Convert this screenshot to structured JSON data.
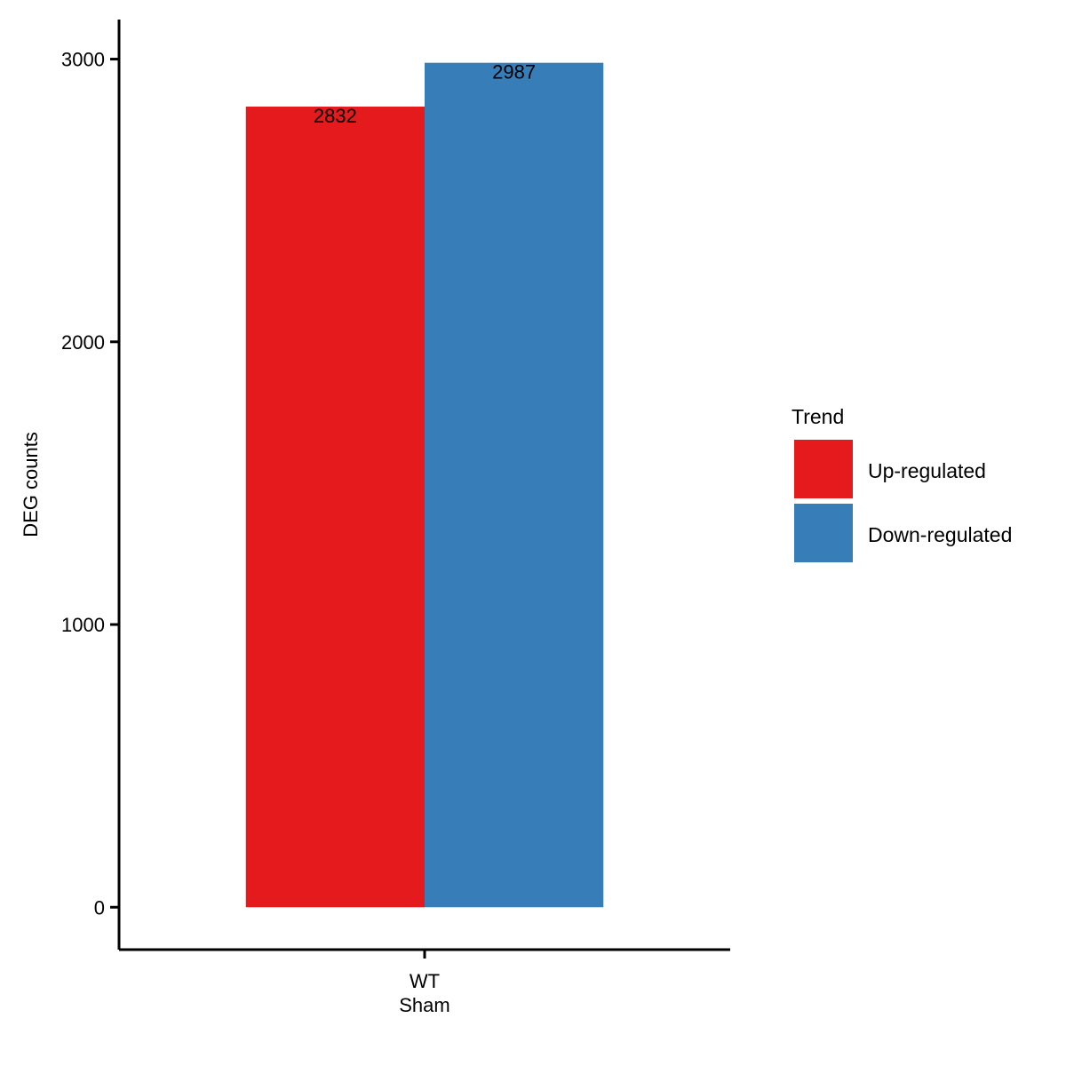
{
  "chart_data": {
    "type": "bar",
    "categories": [
      [
        "WT",
        "Sham"
      ]
    ],
    "series": [
      {
        "name": "Up-regulated",
        "values": [
          2832
        ],
        "color": "#E41A1C"
      },
      {
        "name": "Down-regulated",
        "values": [
          2987
        ],
        "color": "#377EB8"
      }
    ],
    "ylabel": "DEG counts",
    "xlabel": "",
    "ylim": [
      -150,
      3140
    ],
    "yticks": [
      0,
      1000,
      2000,
      3000
    ],
    "data_labels": [
      "2832",
      "2987"
    ],
    "legend": {
      "title": "Trend",
      "placement": "right"
    },
    "grid": false
  }
}
